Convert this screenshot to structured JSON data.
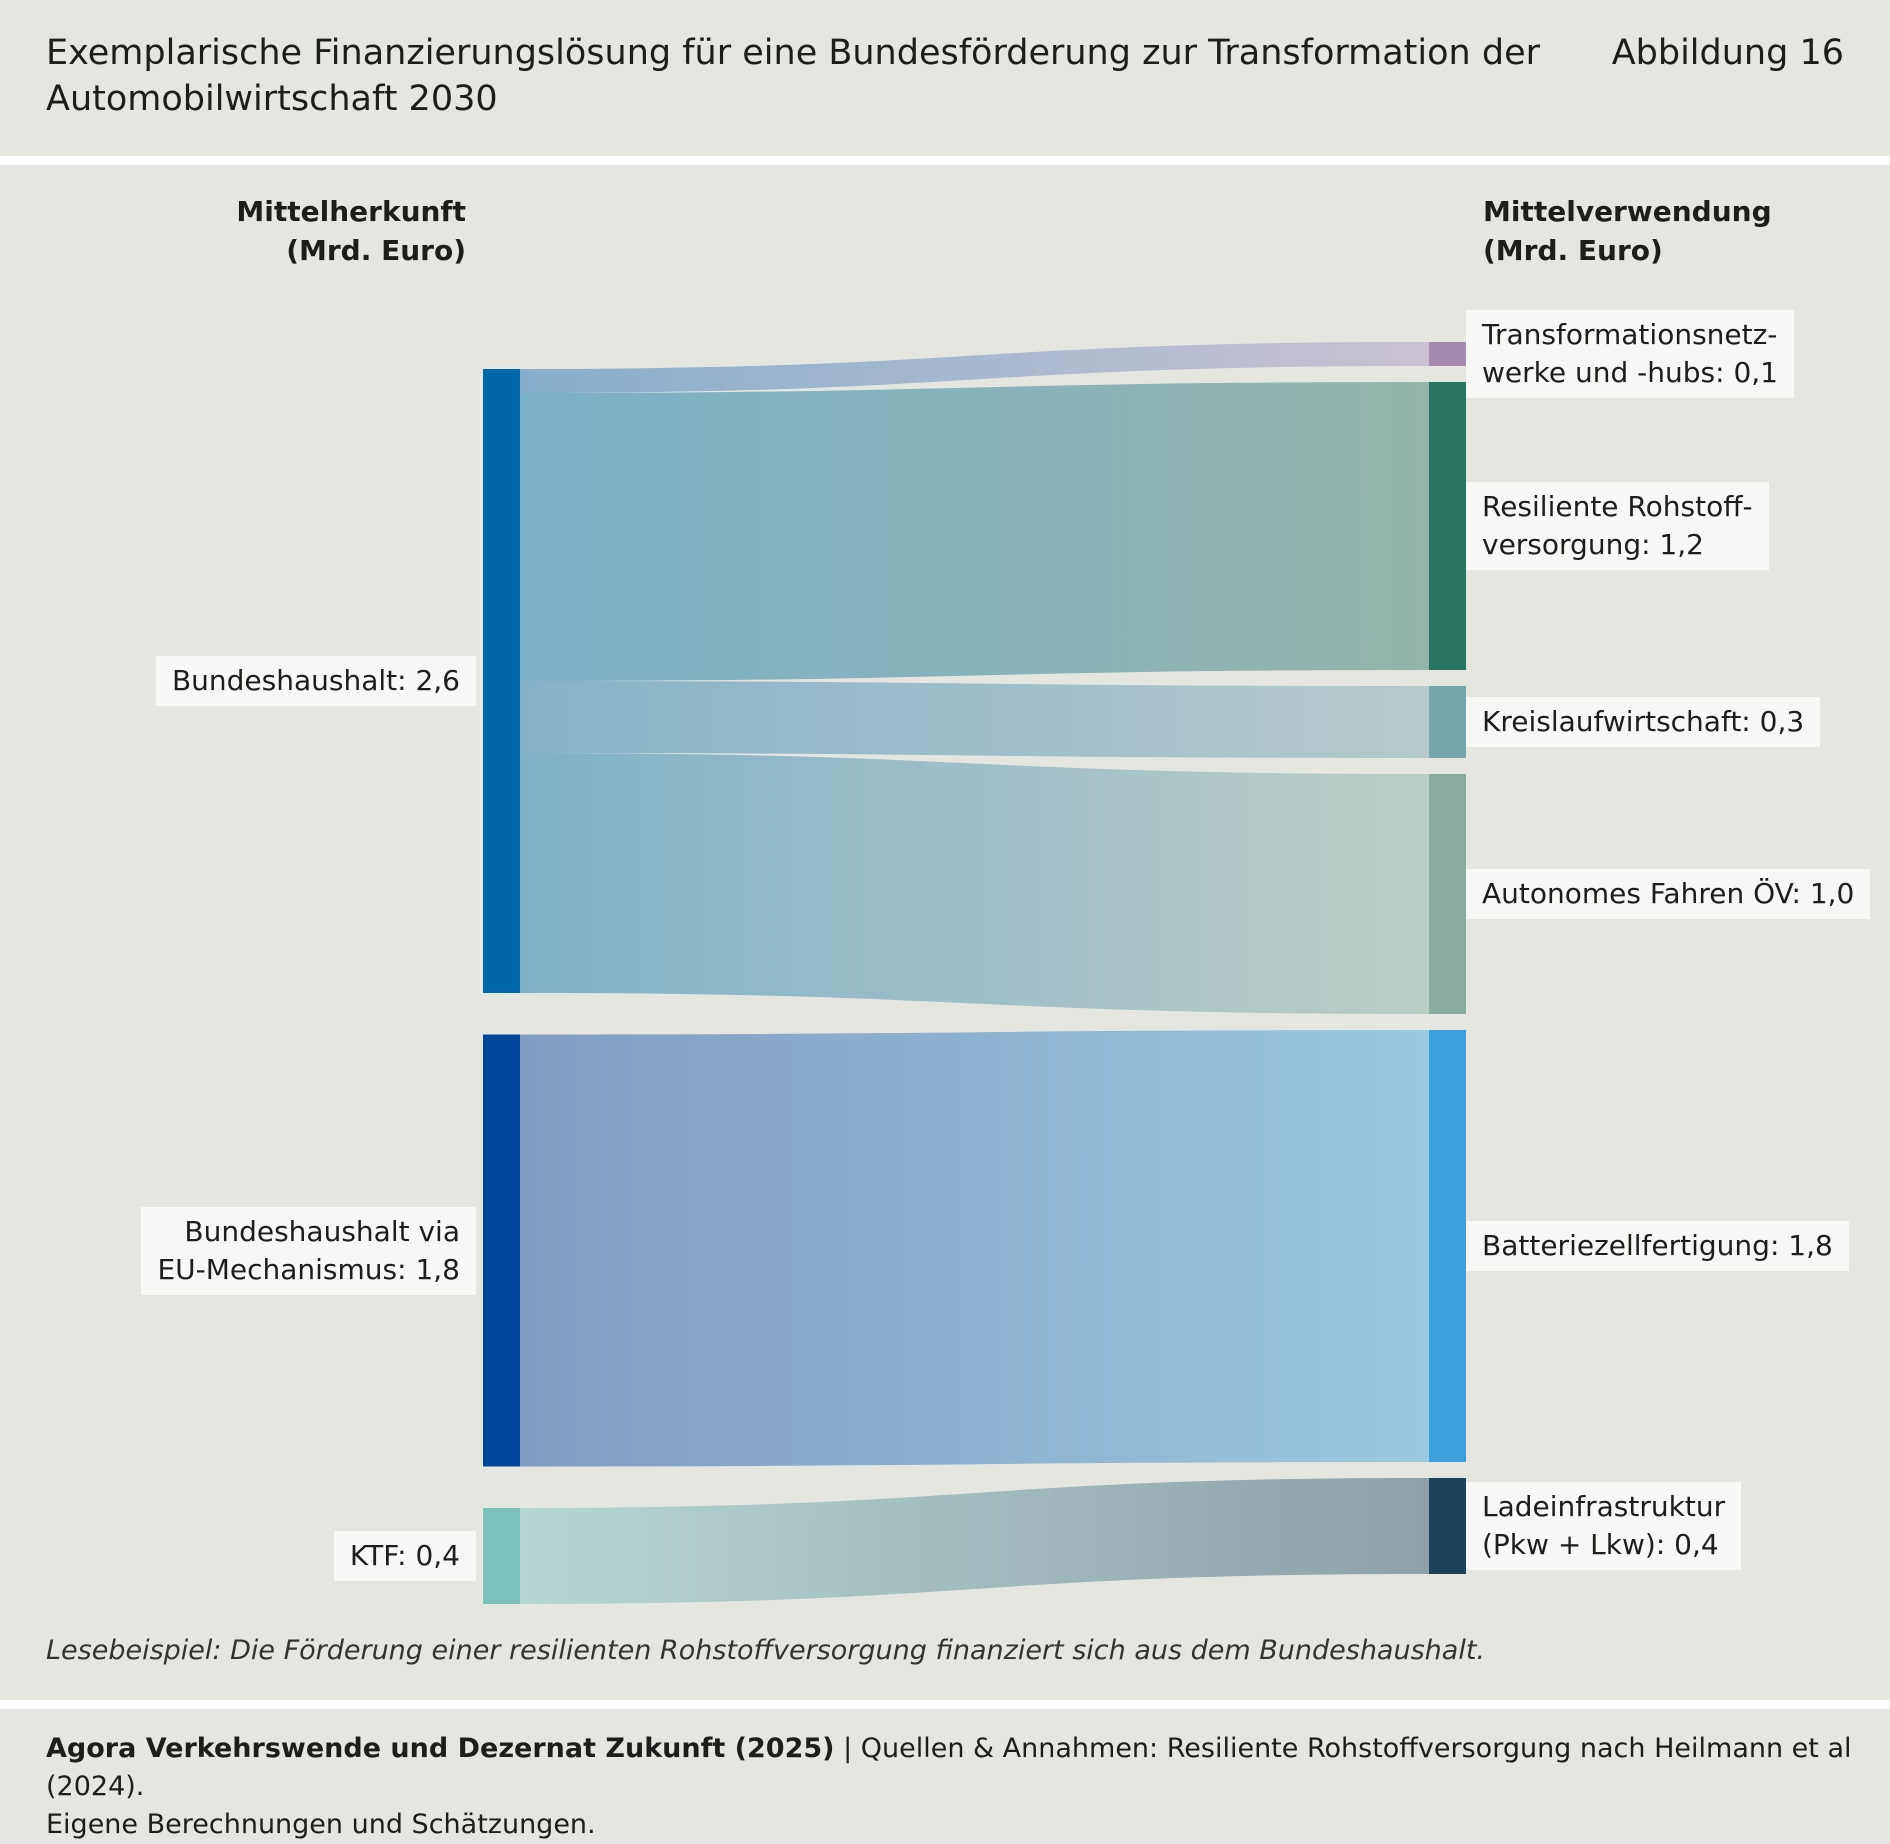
{
  "header": {
    "title_line1": "Exemplarische Finanzierungslösung für eine Bundesförderung zur Transformation der",
    "title_line2": "Automobilwirtschaft 2030",
    "figure_number": "Abbildung 16"
  },
  "columns": {
    "left_line1": "Mittelherkunft",
    "left_line2": "(Mrd. Euro)",
    "right_line1": "Mittelverwendung",
    "right_line2": "(Mrd. Euro)"
  },
  "sources": [
    {
      "id": "bh",
      "label_lines": [
        "Bundeshaushalt: 2,6"
      ],
      "value": 2.6,
      "color": "#0068a8"
    },
    {
      "id": "eu",
      "label_lines": [
        "Bundeshaushalt via",
        "EU-Mechanismus: 1,8"
      ],
      "value": 1.8,
      "color": "#00469a"
    },
    {
      "id": "ktf",
      "label_lines": [
        "KTF: 0,4"
      ],
      "value": 0.4,
      "color": "#7dc1bb"
    }
  ],
  "targets": [
    {
      "id": "trans",
      "label_lines": [
        "Transformationsnetz-",
        "werke und -hubs: 0,1"
      ],
      "value": 0.1,
      "color": "#a58aae"
    },
    {
      "id": "roh",
      "label_lines": [
        "Resiliente Rohstoff-",
        "versorgung: 1,2"
      ],
      "value": 1.2,
      "color": "#2a7561"
    },
    {
      "id": "kreis",
      "label_lines": [
        "Kreislaufwirtschaft: 0,3"
      ],
      "value": 0.3,
      "color": "#76a6ab"
    },
    {
      "id": "auto",
      "label_lines": [
        "Autonomes Fahren ÖV: 1,0"
      ],
      "value": 1.0,
      "color": "#8aab9f"
    },
    {
      "id": "batt",
      "label_lines": [
        "Batteriezellfertigung: 1,8"
      ],
      "value": 1.8,
      "color": "#3d9fdc"
    },
    {
      "id": "lade",
      "label_lines": [
        "Ladeinfrastruktur",
        "(Pkw + Lkw): 0,4"
      ],
      "value": 0.4,
      "color": "#1d435a"
    }
  ],
  "flows": [
    {
      "source": "bh",
      "target": "trans",
      "value": 0.1,
      "color_from": "#86aecc",
      "color_to": "#cac2d1"
    },
    {
      "source": "bh",
      "target": "roh",
      "value": 1.2,
      "color_from": "#7db0c9",
      "color_to": "#93b5aa"
    },
    {
      "source": "bh",
      "target": "kreis",
      "value": 0.3,
      "color_from": "#86b2c9",
      "color_to": "#b6cacb"
    },
    {
      "source": "bh",
      "target": "auto",
      "value": 1.0,
      "color_from": "#80b1c8",
      "color_to": "#bccdc6"
    },
    {
      "source": "eu",
      "target": "batt",
      "value": 1.8,
      "color_from": "#809cc2",
      "color_to": "#9ac8e0"
    },
    {
      "source": "ktf",
      "target": "lade",
      "value": 0.4,
      "color_from": "#b6d6d3",
      "color_to": "#8ea0a8"
    }
  ],
  "reading_example": "Lesebeispiel: Die Förderung einer resilienten Rohstoffversorgung finanziert sich aus dem Bundeshaushalt.",
  "footer": {
    "source_bold": "Agora Verkehrswende und Dezernat Zukunft (2025)",
    "source_rest": " | Quellen & Annahmen: Resiliente Rohstoffversorgung nach Heilmann et al (2024).",
    "line2": "Eigene Berechnungen und Schätzungen."
  }
}
